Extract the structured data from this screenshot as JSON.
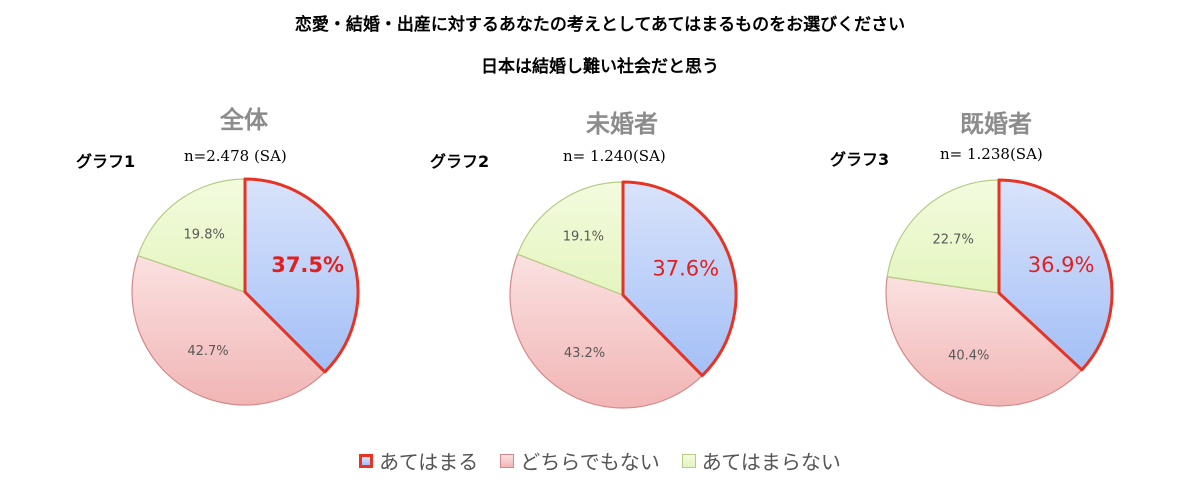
{
  "title": "恋愛・結婚・出産に対するあなたの考えとしてあてはまるものをお選びください",
  "subtitle": "日本は結婚し難い社会だと思う",
  "colors": {
    "yes_fill_top": "#d9e3fb",
    "yes_fill_bottom": "#a3bff6",
    "yes_stroke": "#e63323",
    "neutral_fill_top": "#fbe1e1",
    "neutral_fill_bottom": "#f1b5b5",
    "neutral_stroke": "#d48a8a",
    "no_fill_top": "#f3fbde",
    "no_fill_bottom": "#e4f5bf",
    "no_stroke": "#b6cc84",
    "highlight_text": "#e02020"
  },
  "legend": [
    {
      "label": "あてはまる"
    },
    {
      "label": "どちらでもない"
    },
    {
      "label": "あてはまらない"
    }
  ],
  "chart_data": [
    {
      "type": "pie",
      "heading": "全体",
      "graph_label": "グラフ1",
      "n_label": "n=2.478 (SA)",
      "slices": [
        {
          "value": 37.5,
          "label": "37.5%"
        },
        {
          "value": 42.7,
          "label": "42.7%"
        },
        {
          "value": 19.8,
          "label": "19.8%"
        }
      ]
    },
    {
      "type": "pie",
      "heading": "未婚者",
      "graph_label": "グラフ2",
      "n_label": "n= 1.240(SA)",
      "slices": [
        {
          "value": 37.6,
          "label": "37.6%"
        },
        {
          "value": 43.2,
          "label": "43.2%"
        },
        {
          "value": 19.1,
          "label": "19.1%"
        }
      ]
    },
    {
      "type": "pie",
      "heading": "既婚者",
      "graph_label": "グラフ3",
      "n_label": "n= 1.238(SA)",
      "slices": [
        {
          "value": 36.9,
          "label": "36.9%"
        },
        {
          "value": 40.4,
          "label": "40.4%"
        },
        {
          "value": 22.7,
          "label": "22.7%"
        }
      ]
    }
  ]
}
